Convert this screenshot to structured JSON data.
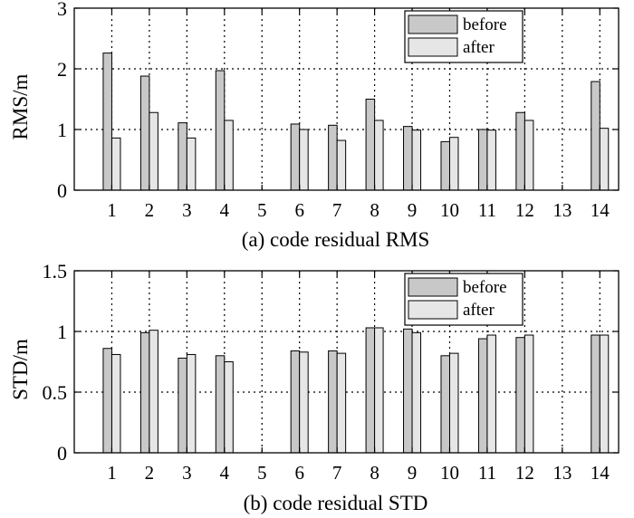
{
  "chart_data": [
    {
      "type": "bar",
      "title": "(a) code residual RMS",
      "xlabel": "",
      "ylabel": "RMS/m",
      "ylim": [
        0,
        3
      ],
      "yticks": [
        0,
        1,
        2,
        3
      ],
      "ytick_labels": [
        "0",
        "1",
        "2",
        "3"
      ],
      "grid": true,
      "legend_position": "top-right",
      "categories": [
        "1",
        "2",
        "3",
        "4",
        "5",
        "6",
        "7",
        "8",
        "9",
        "10",
        "11",
        "12",
        "13",
        "14"
      ],
      "series": [
        {
          "name": "before",
          "color": "#c8c8c8",
          "values": [
            2.26,
            1.88,
            1.11,
            1.97,
            null,
            1.09,
            1.07,
            1.5,
            1.05,
            0.8,
            1.0,
            1.28,
            null,
            1.79
          ]
        },
        {
          "name": "after",
          "color": "#e6e6e6",
          "values": [
            0.86,
            1.28,
            0.86,
            1.15,
            null,
            1.0,
            0.82,
            1.15,
            0.99,
            0.87,
            0.99,
            1.15,
            null,
            1.02
          ]
        }
      ]
    },
    {
      "type": "bar",
      "title": "(b) code residual STD",
      "xlabel": "",
      "ylabel": "STD/m",
      "ylim": [
        0,
        1.5
      ],
      "yticks": [
        0,
        0.5,
        1,
        1.5
      ],
      "ytick_labels": [
        "0",
        "0.5",
        "1",
        "1.5"
      ],
      "grid": true,
      "legend_position": "top-right",
      "categories": [
        "1",
        "2",
        "3",
        "4",
        "5",
        "6",
        "7",
        "8",
        "9",
        "10",
        "11",
        "12",
        "13",
        "14"
      ],
      "series": [
        {
          "name": "before",
          "color": "#c8c8c8",
          "values": [
            0.86,
            0.99,
            0.78,
            0.8,
            null,
            0.84,
            0.84,
            1.03,
            1.02,
            0.8,
            0.94,
            0.95,
            null,
            0.97
          ]
        },
        {
          "name": "after",
          "color": "#e6e6e6",
          "values": [
            0.81,
            1.01,
            0.81,
            0.75,
            null,
            0.83,
            0.82,
            1.03,
            0.99,
            0.82,
            0.97,
            0.97,
            null,
            0.97
          ]
        }
      ]
    }
  ]
}
